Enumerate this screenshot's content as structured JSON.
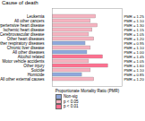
{
  "chart_data": {
    "type": "bar",
    "orientation": "horizontal",
    "title": "Cause of death",
    "x_label": "Proportionate Mortality Ratio (PMR)",
    "categories": [
      "Leukemia",
      "All other cancers",
      "Hypertensive heart disease",
      "Ischemic heart disease",
      "Cerebrovascular disease",
      "Other heart diseases",
      "Other respiratory diseases",
      "Chronic liver disease",
      "All other diseases",
      "Alcohol related",
      "Motor vehicle accidents",
      "Other injury",
      "Suicide",
      "Homicide",
      "All other external causes"
    ],
    "series": [
      {
        "name": "Non-sig",
        "color": "#8fa8dc",
        "values": [
          null,
          null,
          null,
          null,
          null,
          null,
          0.95,
          null,
          1.0,
          null,
          null,
          null,
          null,
          0.85,
          null
        ]
      },
      {
        "name": "p < 0.05",
        "color": "#f6b3c0",
        "values": [
          1.25,
          1.1,
          1.3,
          1.15,
          1.05,
          1.2,
          null,
          1.1,
          null,
          null,
          1.05,
          null,
          1.1,
          null,
          1.2
        ]
      },
      {
        "name": "p < 0.01",
        "color": "#ff7090",
        "values": [
          null,
          null,
          null,
          null,
          null,
          null,
          null,
          null,
          null,
          1.45,
          null,
          1.6,
          null,
          null,
          null
        ]
      }
    ],
    "data_labels": true,
    "value_labels": [
      "PMR = 1.25",
      "PMR = 1.10",
      "PMR = 1.30",
      "PMR = 1.15",
      "PMR = 1.05",
      "PMR = 1.20",
      "PMR = 0.95",
      "PMR = 1.10",
      "PMR = 1.00",
      "PMR = 1.45",
      "PMR = 1.05",
      "PMR = 1.60",
      "PMR = 1.10",
      "PMR = 0.85",
      "PMR = 1.20"
    ],
    "xlim": [
      0,
      2
    ],
    "tick_labels": "y",
    "legend": "bottom"
  }
}
